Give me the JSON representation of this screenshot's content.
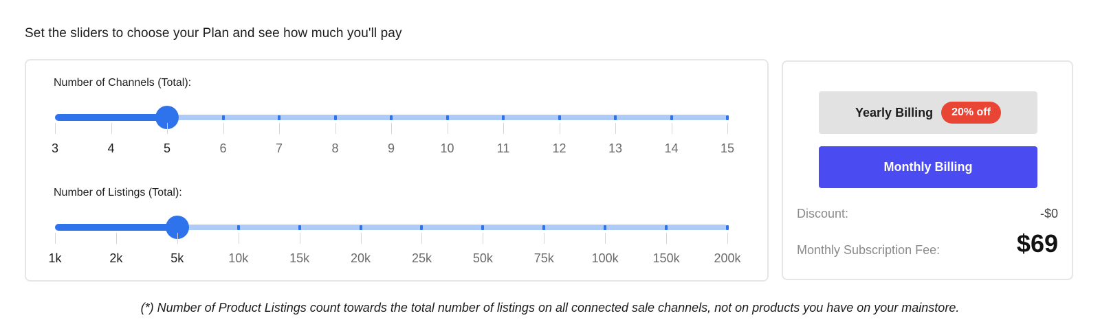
{
  "heading": "Set the sliders to choose your Plan and see how much you'll pay",
  "channels": {
    "label": "Number of Channels (Total):",
    "ticks": [
      "3",
      "4",
      "5",
      "6",
      "7",
      "8",
      "9",
      "10",
      "11",
      "12",
      "13",
      "14",
      "15"
    ],
    "selected": "5"
  },
  "listings": {
    "label": "Number of Listings (Total):",
    "ticks": [
      "1k",
      "2k",
      "5k",
      "10k",
      "15k",
      "20k",
      "25k",
      "50k",
      "75k",
      "100k",
      "150k",
      "200k"
    ],
    "selected": "5k"
  },
  "billing": {
    "yearly_label": "Yearly Billing",
    "yearly_badge": "20% off",
    "monthly_label": "Monthly Billing",
    "discount_label": "Discount:",
    "discount_value": "-$0",
    "fee_label": "Monthly Subscription Fee:",
    "fee_value": "$69"
  },
  "footnote": "(*) Number of Product Listings count towards the total number of listings on all connected sale channels, not on products you have on your mainstore.",
  "colors": {
    "accent": "#2f73ec",
    "track": "#aecbf7",
    "monthly_button": "#4a4cf2",
    "badge": "#e94535"
  }
}
